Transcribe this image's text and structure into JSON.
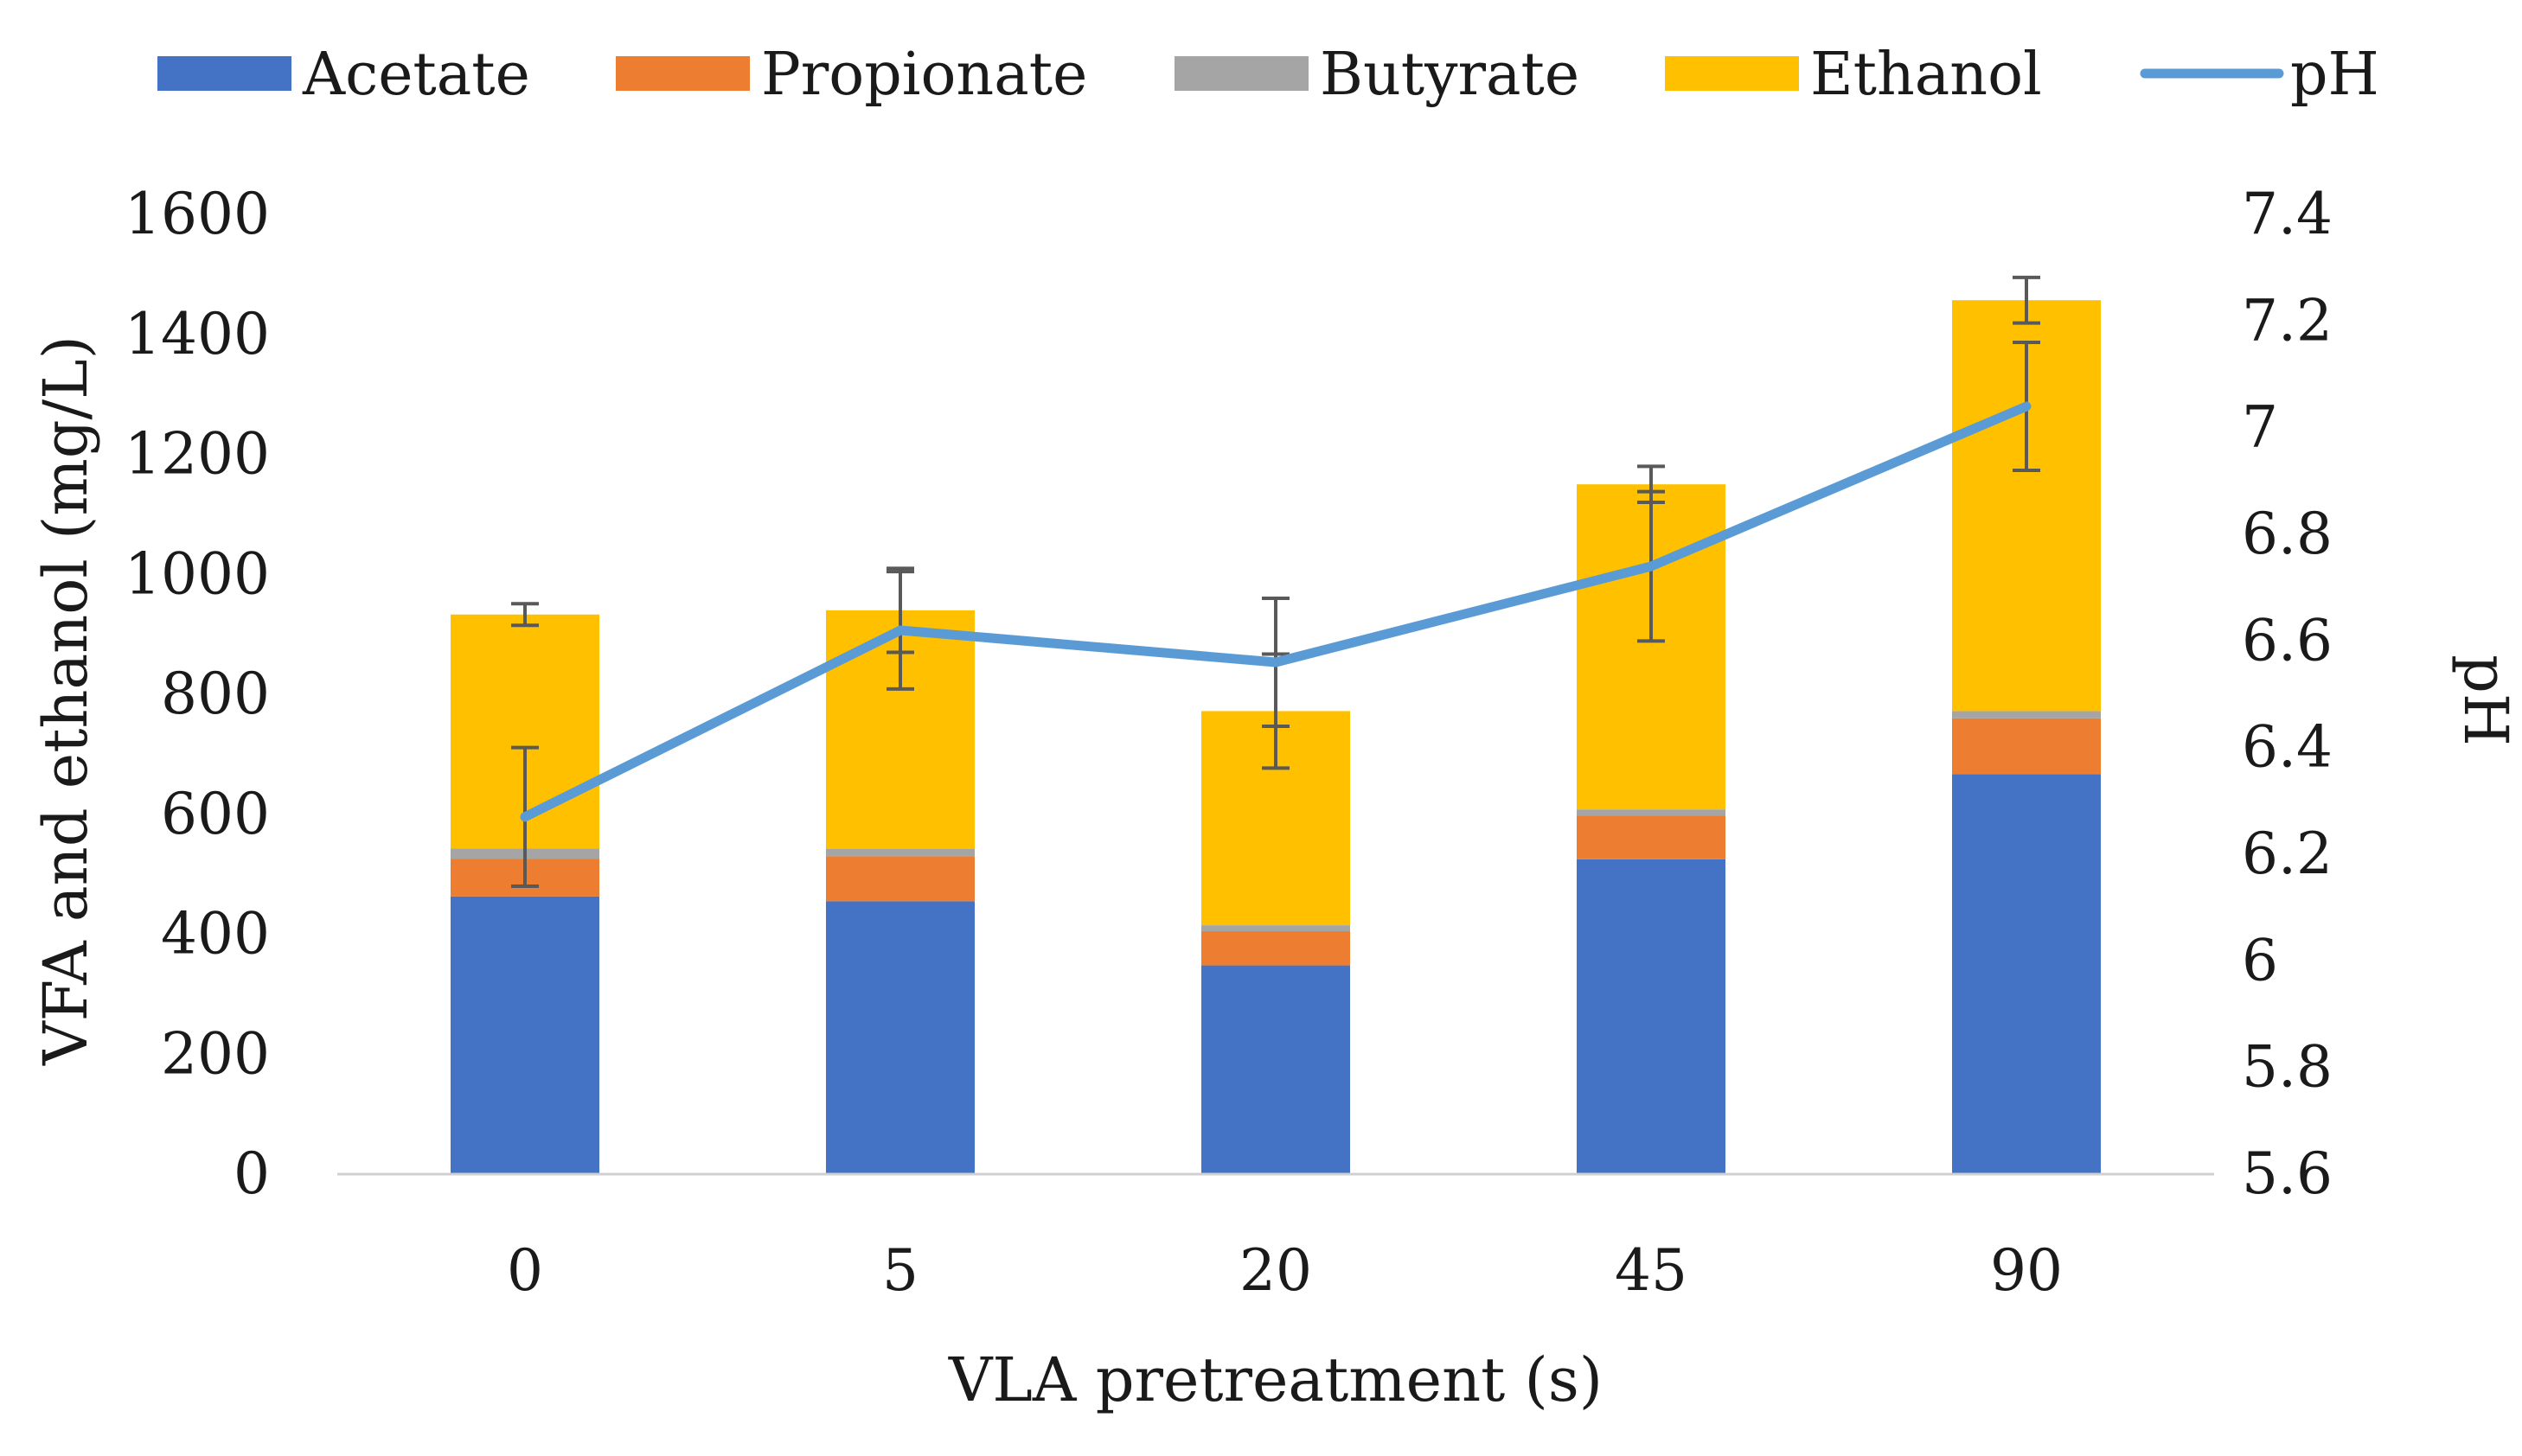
{
  "chart_data": {
    "type": "bar",
    "stacked": true,
    "categories": [
      "0",
      "5",
      "20",
      "45",
      "90"
    ],
    "series": [
      {
        "name": "Acetate",
        "color": "#4472C4",
        "values": [
          463,
          455,
          348,
          525,
          667
        ]
      },
      {
        "name": "Propionate",
        "color": "#ED7D31",
        "values": [
          63,
          75,
          57,
          73,
          93
        ]
      },
      {
        "name": "Butyrate",
        "color": "#A5A5A5",
        "values": [
          17,
          12,
          10,
          10,
          12
        ]
      },
      {
        "name": "Ethanol",
        "color": "#FFC000",
        "values": [
          390,
          398,
          357,
          542,
          685
        ]
      }
    ],
    "bar_error": [
      18,
      70,
      95,
      30,
      38
    ],
    "line_series": {
      "name": "pH",
      "color": "#5B9BD5",
      "axis": "right",
      "values": [
        6.27,
        6.62,
        6.56,
        6.74,
        7.04
      ],
      "error": [
        0.13,
        0.11,
        0.12,
        0.14,
        0.12
      ]
    },
    "xlabel": "VLA pretreatment (s)",
    "ylabel": "VFA and ethanol (mg/L)",
    "y2label": "pH",
    "ylim": [
      0,
      1600
    ],
    "yticks": [
      "0",
      "200",
      "400",
      "600",
      "800",
      "1000",
      "1200",
      "1400",
      "1600"
    ],
    "y2lim": [
      5.6,
      7.4
    ],
    "y2ticks": [
      "5.6",
      "5.8",
      "6",
      "6.2",
      "6.4",
      "6.6",
      "6.8",
      "7",
      "7.2",
      "7.4"
    ],
    "legend": [
      "Acetate",
      "Propionate",
      "Butyrate",
      "Ethanol",
      "pH"
    ],
    "legend_position": "top"
  }
}
